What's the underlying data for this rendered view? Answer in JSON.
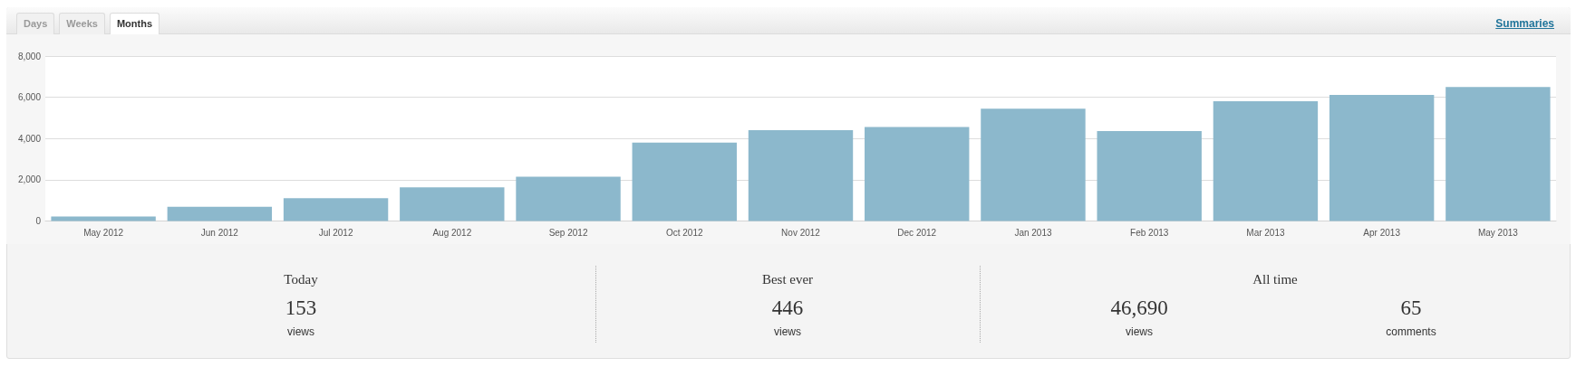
{
  "chart_data": [
    {
      "type": "bar",
      "annotations": [
        "Days",
        "Weeks",
        "Months",
        "Summaries"
      ],
      "categories": [
        "May 2012",
        "Jun 2012",
        "Jul 2012",
        "Aug 2012",
        "Sep 2012",
        "Oct 2012",
        "Nov 2012",
        "Dec 2012",
        "Jan 2013",
        "Feb 2013",
        "Mar 2013",
        "Apr 2013",
        "May 2013"
      ],
      "values": [
        210,
        690,
        1100,
        1630,
        2140,
        3800,
        4400,
        4560,
        5440,
        4360,
        5810,
        6110,
        6500
      ],
      "color": "#8cb8cc",
      "ylim": [
        0,
        8000
      ],
      "yticks": [
        0,
        {
          "value": 2000,
          "label": "2,000"
        },
        {
          "value": 4000,
          "label": "4,000"
        },
        {
          "value": 6000,
          "label": "6,000"
        },
        {
          "value": 8000,
          "label": "8,000"
        }
      ],
      "grid": "y"
    },
    {
      "type": "other",
      "categories": [
        "Today",
        "Best ever",
        "All time"
      ],
      "series": [
        {
          "name": "views",
          "values": [
            153,
            446,
            46690
          ],
          "value_labels": [
            "153",
            "446",
            "46,690"
          ]
        },
        {
          "name": "comments",
          "values": [
            null,
            null,
            65
          ],
          "value_labels": [
            null,
            null,
            "65"
          ]
        }
      ]
    }
  ]
}
